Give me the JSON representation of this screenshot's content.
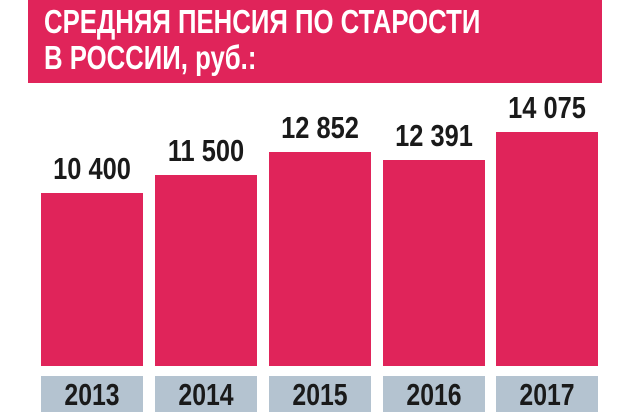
{
  "chart_data": {
    "type": "bar",
    "title": "СРЕДНЯЯ ПЕНСИЯ ПО СТАРОСТИ",
    "subtitle": "В РОССИИ, руб.:",
    "categories": [
      "2013",
      "2014",
      "2015",
      "2016",
      "2017"
    ],
    "values": [
      10400,
      11500,
      12852,
      12391,
      14075
    ],
    "value_labels": [
      "10 400",
      "11 500",
      "12 852",
      "12 391",
      "14 075"
    ],
    "xlabel": "",
    "ylabel": "",
    "ylim": [
      0,
      14075
    ],
    "grid": false,
    "colors": {
      "bar": "#e0245a",
      "title_bg": "#e0245a",
      "category_bg": "#b4c3d0"
    }
  }
}
